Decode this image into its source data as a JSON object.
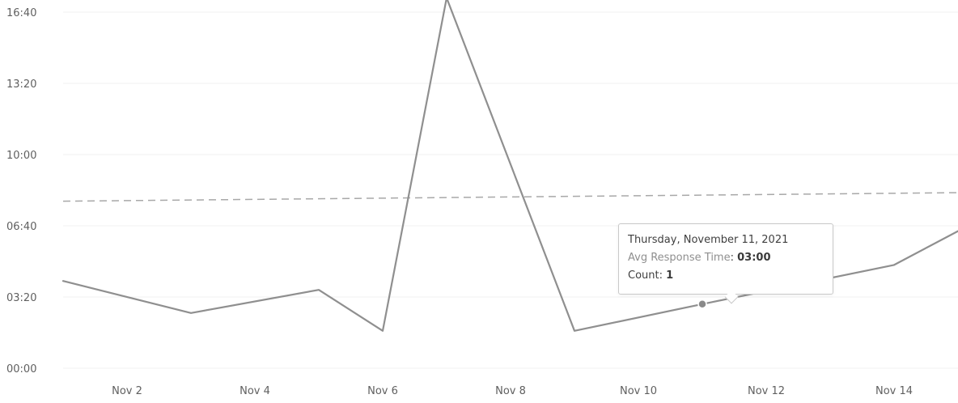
{
  "chart_data": {
    "type": "line",
    "title": "",
    "xlabel": "",
    "ylabel": "",
    "x_ticks": [
      "Nov 2",
      "Nov 4",
      "Nov 6",
      "Nov 8",
      "Nov 10",
      "Nov 12",
      "Nov 14"
    ],
    "y_ticks": [
      "00:00",
      "03:20",
      "06:40",
      "10:00",
      "13:20",
      "16:40"
    ],
    "ylim": [
      "00:00",
      "16:40"
    ],
    "xlim": [
      "2021-11-01",
      "2021-11-15"
    ],
    "grid": true,
    "average_line": {
      "style": "dashed",
      "start": "07:49",
      "end": "08:13"
    },
    "series": [
      {
        "points": [
          {
            "date": "2021-11-01",
            "avg_response_time": "04:05"
          },
          {
            "date": "2021-11-03",
            "avg_response_time": "02:35"
          },
          {
            "date": "2021-11-05",
            "avg_response_time": "03:40"
          },
          {
            "date": "2021-11-06",
            "avg_response_time": "01:45"
          },
          {
            "date": "2021-11-07",
            "avg_response_time": "17:20"
          },
          {
            "date": "2021-11-09",
            "avg_response_time": "01:45"
          },
          {
            "date": "2021-11-11",
            "avg_response_time": "03:00"
          },
          {
            "date": "2021-11-14",
            "avg_response_time": "04:50"
          },
          {
            "date": "2021-11-15",
            "avg_response_time": "06:25"
          }
        ]
      }
    ],
    "tooltip": {
      "date": "Thursday, November 11, 2021",
      "avg_label": "Avg Response Time",
      "avg_value": "03:00",
      "count_label": "Count",
      "count_value": "1"
    }
  }
}
